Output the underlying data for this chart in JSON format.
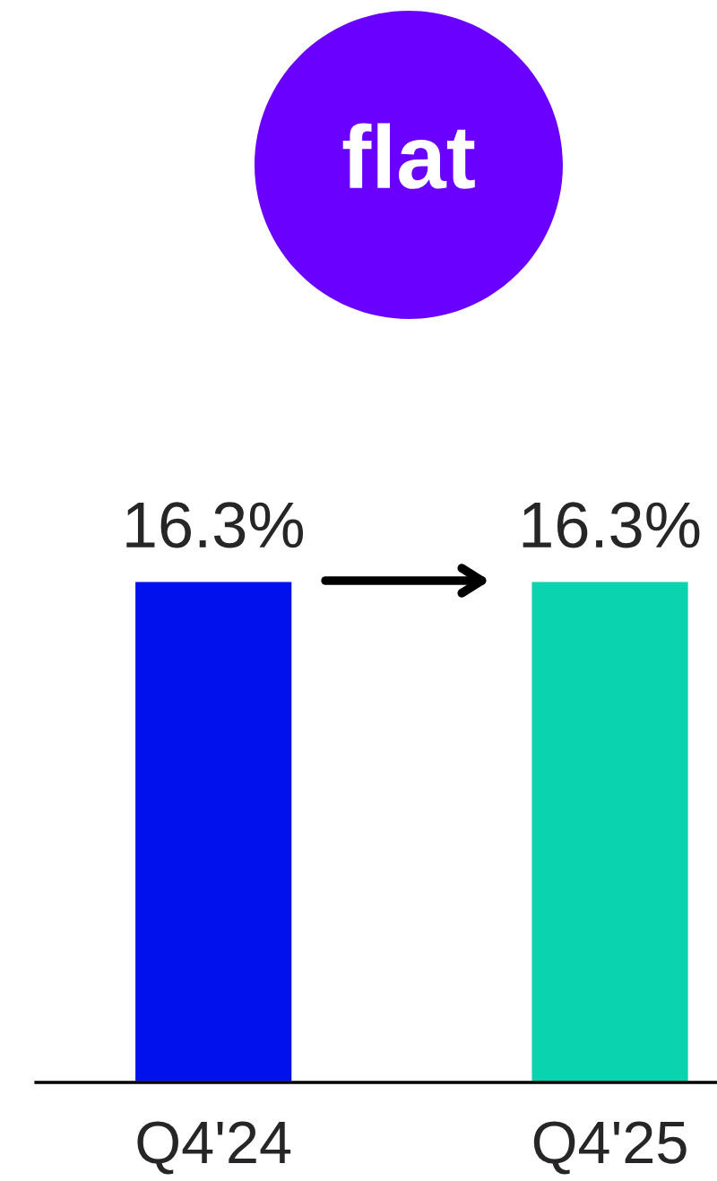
{
  "chart_data": {
    "type": "bar",
    "categories": [
      "Q4'24",
      "Q4'25"
    ],
    "values": [
      16.3,
      16.3
    ],
    "colors": [
      "#0011ee",
      "#0ad4b0"
    ],
    "value_labels": [
      "16.3%",
      "16.3%"
    ],
    "annotations": [
      "flat"
    ],
    "tick_labels": "x",
    "grid": false,
    "legend": false
  }
}
